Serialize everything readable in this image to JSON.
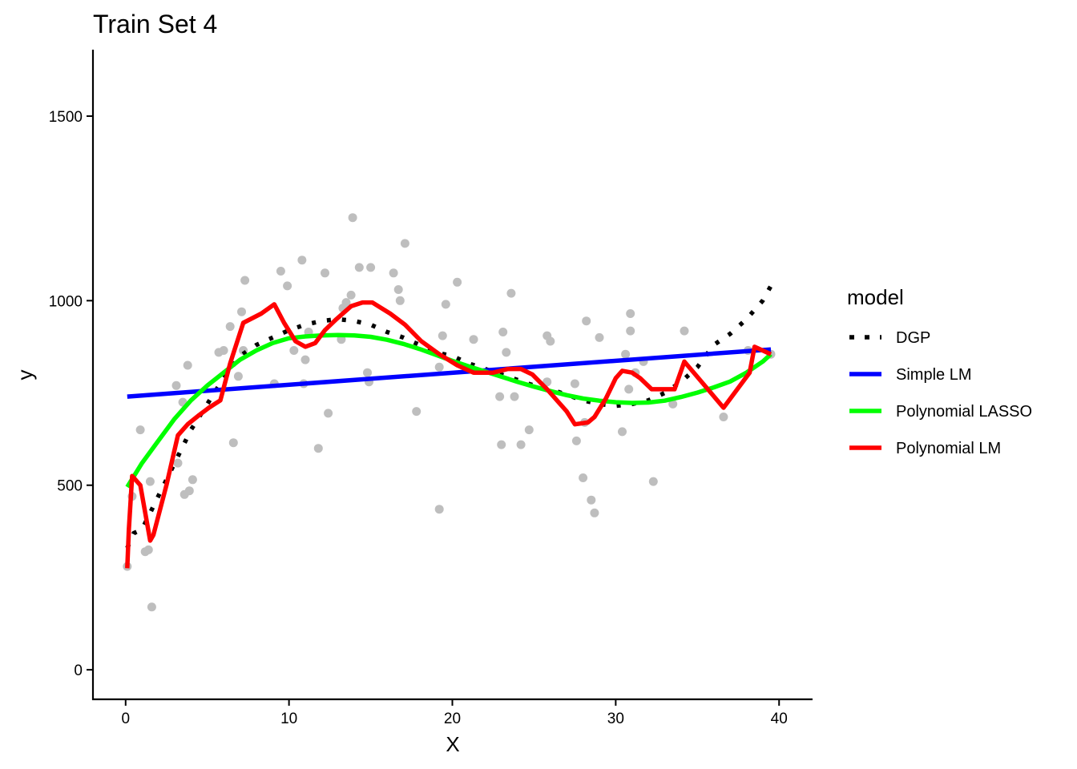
{
  "chart_data": {
    "type": "scatter",
    "title": "Train Set 4",
    "xlabel": "X",
    "ylabel": "y",
    "xlim": [
      -2,
      42
    ],
    "ylim": [
      -80,
      1680
    ],
    "xticks": [
      0,
      10,
      20,
      30,
      40
    ],
    "yticks": [
      0,
      500,
      1000,
      1500
    ],
    "grid": false,
    "legend": {
      "title": "model",
      "placement": "right",
      "entries": [
        {
          "name": "DGP",
          "color": "#000000",
          "style": "dotted"
        },
        {
          "name": "Simple LM",
          "color": "#0000FF",
          "style": "solid"
        },
        {
          "name": "Polynomial LASSO",
          "color": "#00FF00",
          "style": "solid"
        },
        {
          "name": "Polynomial LM",
          "color": "#FF0000",
          "style": "solid"
        }
      ]
    },
    "points_color": "#BEBEBE",
    "points": [
      [
        0.1,
        280
      ],
      [
        0.4,
        470
      ],
      [
        0.9,
        650
      ],
      [
        1.2,
        320
      ],
      [
        1.4,
        325
      ],
      [
        1.5,
        510
      ],
      [
        1.6,
        170
      ],
      [
        3.1,
        770
      ],
      [
        3.2,
        560
      ],
      [
        3.5,
        725
      ],
      [
        3.6,
        475
      ],
      [
        3.8,
        825
      ],
      [
        3.9,
        485
      ],
      [
        4.1,
        515
      ],
      [
        5.7,
        860
      ],
      [
        6.0,
        865
      ],
      [
        6.4,
        930
      ],
      [
        6.6,
        615
      ],
      [
        6.9,
        795
      ],
      [
        7.1,
        970
      ],
      [
        7.2,
        865
      ],
      [
        7.3,
        1055
      ],
      [
        9.1,
        775
      ],
      [
        9.5,
        1080
      ],
      [
        9.9,
        1040
      ],
      [
        10.3,
        865
      ],
      [
        10.8,
        1110
      ],
      [
        10.9,
        775
      ],
      [
        11.0,
        840
      ],
      [
        11.2,
        915
      ],
      [
        11.8,
        600
      ],
      [
        12.2,
        1075
      ],
      [
        12.4,
        695
      ],
      [
        13.2,
        895
      ],
      [
        13.3,
        980
      ],
      [
        13.5,
        995
      ],
      [
        13.8,
        1015
      ],
      [
        13.9,
        1225
      ],
      [
        14.3,
        1090
      ],
      [
        14.8,
        805
      ],
      [
        14.9,
        780
      ],
      [
        15.0,
        1090
      ],
      [
        16.4,
        1075
      ],
      [
        16.7,
        1030
      ],
      [
        16.8,
        1000
      ],
      [
        17.1,
        1155
      ],
      [
        17.8,
        700
      ],
      [
        19.2,
        435
      ],
      [
        19.2,
        820
      ],
      [
        19.4,
        905
      ],
      [
        19.6,
        990
      ],
      [
        20.3,
        1050
      ],
      [
        21.3,
        895
      ],
      [
        22.9,
        740
      ],
      [
        23.0,
        610
      ],
      [
        23.1,
        915
      ],
      [
        23.3,
        860
      ],
      [
        23.6,
        1020
      ],
      [
        23.8,
        740
      ],
      [
        24.2,
        610
      ],
      [
        24.7,
        650
      ],
      [
        25.8,
        780
      ],
      [
        25.8,
        905
      ],
      [
        26.0,
        890
      ],
      [
        27.5,
        775
      ],
      [
        27.6,
        620
      ],
      [
        28.0,
        520
      ],
      [
        28.1,
        670
      ],
      [
        28.2,
        945
      ],
      [
        28.5,
        460
      ],
      [
        28.7,
        425
      ],
      [
        29.0,
        900
      ],
      [
        30.4,
        645
      ],
      [
        30.6,
        855
      ],
      [
        30.8,
        760
      ],
      [
        30.9,
        965
      ],
      [
        30.9,
        918
      ],
      [
        31.2,
        805
      ],
      [
        31.7,
        835
      ],
      [
        32.3,
        510
      ],
      [
        33.5,
        720
      ],
      [
        34.2,
        918
      ],
      [
        36.6,
        685
      ],
      [
        38.1,
        865
      ],
      [
        39.5,
        855
      ]
    ],
    "series": [
      {
        "name": "DGP",
        "color": "#000000",
        "style": "dotted",
        "x": [
          0.1,
          0.5,
          1,
          2,
          3,
          4,
          5,
          6,
          7,
          8,
          9,
          10,
          11,
          12,
          13,
          14,
          15,
          16,
          17,
          18,
          19,
          20,
          21,
          22,
          23,
          24,
          25,
          26,
          27,
          28,
          29,
          30,
          31,
          32,
          33,
          34,
          35,
          36,
          37,
          38,
          39,
          39.5
        ],
        "y": [
          330,
          370,
          380,
          470,
          560,
          650,
          720,
          790,
          850,
          880,
          900,
          920,
          935,
          945,
          950,
          945,
          935,
          915,
          900,
          880,
          860,
          850,
          830,
          815,
          800,
          785,
          770,
          760,
          745,
          730,
          720,
          715,
          720,
          730,
          750,
          780,
          820,
          880,
          910,
          950,
          1000,
          1040
        ]
      },
      {
        "name": "Simple LM",
        "color": "#0000FF",
        "style": "solid",
        "x": [
          0.1,
          39.5
        ],
        "y": [
          740,
          868
        ]
      },
      {
        "name": "Polynomial LASSO",
        "color": "#00FF00",
        "style": "solid",
        "x": [
          0.1,
          1,
          2,
          3,
          4,
          5,
          6,
          7,
          8,
          9,
          10,
          11,
          12,
          13,
          14,
          15,
          16,
          17,
          18,
          19,
          20,
          21,
          22,
          23,
          24,
          25,
          26,
          27,
          28,
          29,
          30,
          31,
          32,
          33,
          34,
          35,
          36,
          37,
          38,
          39,
          39.5
        ],
        "y": [
          495,
          560,
          620,
          680,
          730,
          770,
          805,
          840,
          865,
          885,
          898,
          903,
          906,
          907,
          906,
          902,
          894,
          883,
          869,
          853,
          837,
          822,
          808,
          794,
          780,
          767,
          755,
          744,
          735,
          729,
          725,
          723,
          724,
          729,
          739,
          751,
          765,
          781,
          805,
          835,
          855
        ]
      },
      {
        "name": "Polynomial LM",
        "color": "#FF0000",
        "style": "solid",
        "x": [
          0.1,
          0.2,
          0.4,
          0.9,
          1.5,
          1.7,
          2.5,
          3.2,
          3.8,
          4.5,
          5.1,
          5.8,
          6.4,
          7.2,
          8.3,
          9.1,
          9.7,
          10.4,
          11.0,
          11.6,
          12.2,
          12.9,
          13.8,
          14.5,
          15.1,
          16.2,
          17.1,
          18.1,
          19.2,
          20.3,
          21.3,
          22.5,
          23.4,
          24.2,
          24.9,
          25.8,
          27.0,
          27.5,
          28.3,
          28.7,
          29.4,
          30.0,
          30.4,
          31.0,
          31.5,
          32.2,
          33.6,
          34.2,
          36.6,
          38.2,
          38.5,
          39.5
        ],
        "y": [
          275,
          380,
          525,
          500,
          350,
          365,
          500,
          635,
          665,
          690,
          710,
          730,
          830,
          940,
          965,
          990,
          940,
          890,
          875,
          885,
          920,
          950,
          985,
          995,
          995,
          965,
          935,
          890,
          855,
          825,
          805,
          805,
          815,
          815,
          800,
          760,
          700,
          665,
          670,
          685,
          735,
          790,
          810,
          805,
          790,
          760,
          760,
          835,
          710,
          805,
          875,
          855
        ]
      }
    ]
  }
}
